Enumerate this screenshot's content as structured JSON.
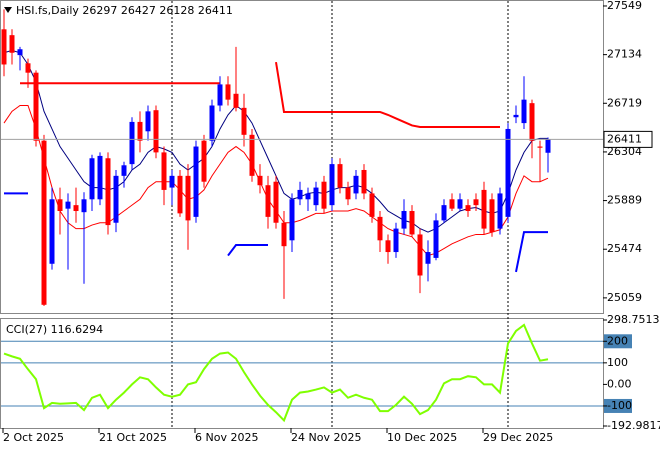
{
  "chart_data": [
    {
      "type": "candlestick",
      "title": "HSI.fs,Daily  26297 26427 26128 26411",
      "categories": [
        "2 Oct 2025",
        null,
        null,
        null,
        null,
        null,
        null,
        null,
        null,
        null,
        null,
        null,
        "21 Oct 2025",
        null,
        null,
        null,
        null,
        null,
        null,
        null,
        null,
        null,
        null,
        null,
        "6 Nov 2025",
        null,
        null,
        null,
        null,
        null,
        null,
        null,
        null,
        null,
        null,
        null,
        "24 Nov 2025",
        null,
        null,
        null,
        null,
        null,
        null,
        null,
        null,
        null,
        null,
        null,
        "10 Dec 2025",
        null,
        null,
        null,
        null,
        null,
        null,
        null,
        null,
        null,
        null,
        null,
        "29 Dec 2025",
        null,
        null,
        null,
        null,
        null,
        null,
        null,
        null
      ],
      "open": [
        27350,
        27300,
        27130,
        27060,
        26980,
        26400,
        25350,
        25900,
        25820,
        25850,
        25790,
        25900,
        25900,
        26250,
        25700,
        26100,
        26200,
        26560,
        26480,
        26660,
        26300,
        26000,
        26100,
        26100,
        25750,
        26400,
        26400,
        26700,
        26880,
        26800,
        26680,
        26450,
        26100,
        26020,
        26050,
        25700,
        25550,
        25900,
        25900,
        25850,
        26050,
        25850,
        26200,
        26000,
        25950,
        26150,
        25950,
        25750,
        25550,
        25450,
        25650,
        25800,
        25600,
        25350,
        25400,
        25720,
        25900,
        25820,
        25850,
        25900,
        25980,
        25900,
        25650,
        25750,
        26600,
        26550,
        26720,
        26350,
        26297
      ],
      "high": [
        27520,
        27350,
        27200,
        27100,
        27000,
        26450,
        26000,
        26000,
        25950,
        26000,
        25960,
        26280,
        26300,
        26300,
        26150,
        26220,
        26600,
        26650,
        26700,
        26700,
        26350,
        26150,
        26150,
        26200,
        26400,
        26450,
        26750,
        26950,
        26950,
        27200,
        26800,
        26500,
        26200,
        26100,
        26100,
        25800,
        25950,
        26050,
        26000,
        26050,
        26100,
        26250,
        26250,
        26050,
        26150,
        26200,
        26000,
        25800,
        25600,
        25700,
        25900,
        25850,
        25650,
        25550,
        25780,
        25900,
        25950,
        25950,
        25900,
        25950,
        26050,
        25950,
        26000,
        26550,
        26700,
        26950,
        26750,
        26400,
        26427
      ],
      "low": [
        26950,
        27050,
        27000,
        26850,
        26350,
        24990,
        25300,
        25600,
        25300,
        25700,
        25180,
        25800,
        25850,
        25600,
        25620,
        26000,
        26150,
        26300,
        26400,
        26250,
        25850,
        25850,
        25750,
        25470,
        25700,
        26000,
        26350,
        26650,
        26700,
        26650,
        26350,
        26050,
        25950,
        25650,
        25650,
        25050,
        25450,
        25850,
        25800,
        25800,
        25780,
        25800,
        25950,
        25850,
        25900,
        25900,
        25700,
        25450,
        25350,
        25400,
        25600,
        25580,
        25100,
        25200,
        25380,
        25700,
        25800,
        25800,
        25750,
        25800,
        25600,
        25580,
        25600,
        25700,
        26550,
        26500,
        26250,
        26050,
        26128
      ],
      "close": [
        27050,
        27150,
        27180,
        26980,
        26400,
        25000,
        25900,
        25800,
        25880,
        25800,
        25900,
        26250,
        26270,
        25680,
        26100,
        26190,
        26560,
        26400,
        26650,
        26300,
        25980,
        26100,
        25780,
        25720,
        26350,
        26050,
        26700,
        26880,
        26750,
        26680,
        26450,
        26100,
        26020,
        25750,
        25700,
        25500,
        25900,
        25980,
        25950,
        26000,
        25820,
        26200,
        26000,
        25900,
        26100,
        25950,
        25750,
        25550,
        25450,
        25650,
        25800,
        25600,
        25250,
        25450,
        25720,
        25850,
        25820,
        25900,
        25800,
        25850,
        25650,
        25620,
        25950,
        26500,
        26620,
        26750,
        26400,
        26340,
        26411
      ],
      "up_color": "#0000ff",
      "down_color": "#ff0000",
      "lines": [
        {
          "color": "#000080",
          "values": [
            27150,
            27170,
            27150,
            27050,
            26900,
            26650,
            26500,
            26350,
            26250,
            26150,
            26050,
            26000,
            26000,
            25980,
            26000,
            26050,
            26150,
            26200,
            26300,
            26350,
            26330,
            26300,
            26200,
            26150,
            26200,
            26250,
            26350,
            26500,
            26620,
            26700,
            26650,
            26550,
            26400,
            26250,
            26100,
            25950,
            25900,
            25920,
            25950,
            25960,
            25950,
            25980,
            26000,
            26000,
            26020,
            26000,
            25950,
            25880,
            25800,
            25760,
            25720,
            25700,
            25650,
            25620,
            25650,
            25700,
            25750,
            25800,
            25820,
            25830,
            25800,
            25780,
            25800,
            25950,
            26150,
            26300,
            26400,
            26420,
            26420
          ]
        },
        {
          "color": "#ff0000",
          "values": [
            26550,
            26650,
            26700,
            26700,
            26500,
            26250,
            26000,
            25800,
            25700,
            25650,
            25650,
            25680,
            25700,
            25700,
            25750,
            25800,
            25850,
            25900,
            26000,
            26050,
            26050,
            26050,
            25980,
            25900,
            25920,
            25980,
            26100,
            26200,
            26300,
            26350,
            26300,
            26200,
            26050,
            25900,
            25800,
            25700,
            25700,
            25720,
            25750,
            25780,
            25780,
            25800,
            25800,
            25800,
            25820,
            25800,
            25750,
            25700,
            25650,
            25620,
            25600,
            25580,
            25500,
            25420,
            25440,
            25480,
            25520,
            25550,
            25580,
            25600,
            25600,
            25620,
            25640,
            25750,
            25950,
            26100,
            26050,
            26050,
            26080
          ]
        },
        {
          "color": "#ff0000",
          "width": 2,
          "values": [
            null,
            null,
            26890,
            26890,
            26890,
            26890,
            26890,
            26890,
            26890,
            26890,
            26890,
            26890,
            26890,
            26890,
            26890,
            26890,
            26890,
            26890,
            26890,
            26890,
            26890,
            26890,
            26890,
            26890,
            26890,
            26890,
            26890,
            26890,
            null,
            null,
            null,
            null,
            null,
            null,
            27070,
            26645,
            26645,
            26645,
            26645,
            26645,
            26645,
            26645,
            26645,
            26645,
            26645,
            26645,
            26645,
            26645,
            26620,
            26590,
            26560,
            26530,
            26517,
            26517,
            26517,
            26517,
            26517,
            26517,
            26517,
            26517,
            26517,
            26517,
            26517,
            null,
            null,
            null,
            null,
            null,
            null
          ]
        },
        {
          "color": "#0000ff",
          "width": 2,
          "values": [
            25950,
            25950,
            25950,
            25950,
            null,
            null,
            null,
            null,
            null,
            null,
            null,
            null,
            null,
            null,
            null,
            null,
            null,
            null,
            null,
            null,
            null,
            null,
            null,
            null,
            null,
            null,
            null,
            null,
            25420,
            25510,
            25510,
            25510,
            25510,
            25510,
            null,
            null,
            null,
            null,
            null,
            null,
            null,
            null,
            null,
            null,
            null,
            null,
            null,
            null,
            null,
            null,
            null,
            null,
            null,
            null,
            null,
            null,
            null,
            null,
            null,
            null,
            null,
            null,
            null,
            null,
            25280,
            25620,
            25620,
            25620,
            25620
          ]
        }
      ],
      "last_price": 26411,
      "ylim": [
        24930,
        27600
      ],
      "yticks": [
        27549,
        27134,
        26719,
        26304,
        25889,
        25474,
        25059
      ]
    },
    {
      "type": "line",
      "title": "CCI(27) 116.6294",
      "color": "#7fff00",
      "values": [
        143,
        130,
        119,
        70,
        24,
        -110,
        -86,
        -90,
        -88,
        -86,
        -119,
        -62,
        -48,
        -110,
        -71,
        -38,
        0,
        33,
        24,
        -14,
        -48,
        -57,
        -48,
        0,
        10,
        71,
        119,
        143,
        148,
        119,
        57,
        0,
        -52,
        -95,
        -129,
        -167,
        -71,
        -38,
        -33,
        -24,
        -14,
        -38,
        -24,
        -62,
        -48,
        -62,
        -71,
        -124,
        -124,
        -95,
        -57,
        -90,
        -138,
        -119,
        -71,
        5,
        24,
        24,
        38,
        33,
        0,
        0,
        -38,
        190,
        248,
        276,
        190,
        110,
        116.6294
      ],
      "levels": [
        200,
        100,
        -100
      ],
      "ylim": [
        -192.9817,
        298.7513
      ],
      "yticks": [
        298.7513,
        200,
        100,
        {
          "value": 0,
          "label": "0.00"
        },
        -100,
        -192.9817
      ]
    }
  ]
}
